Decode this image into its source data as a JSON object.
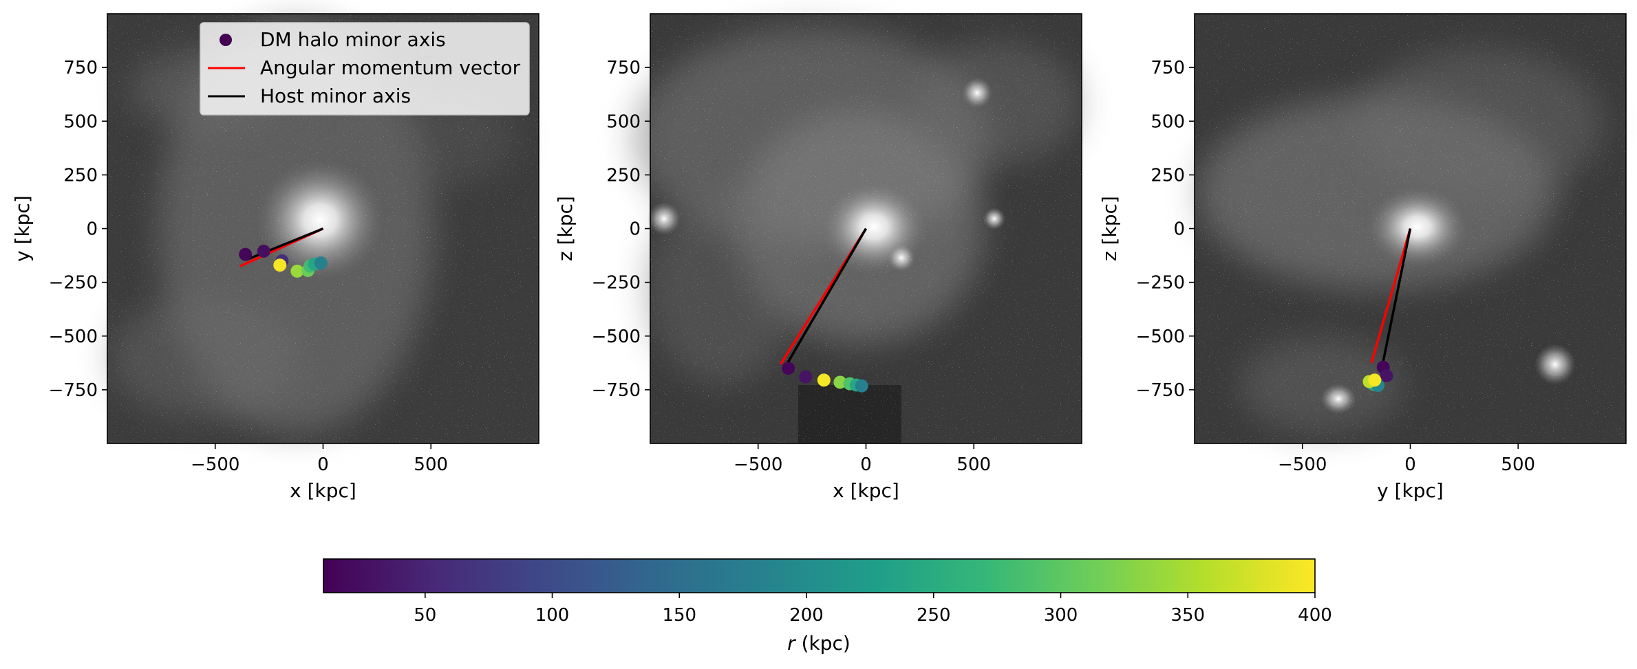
{
  "chart_data": [
    {
      "type": "scatter",
      "xlabel": "x [kpc]",
      "ylabel": "y [kpc]",
      "xlim": [
        -1000,
        1000
      ],
      "ylim": [
        -1000,
        1000
      ],
      "xticks": [
        -500,
        0,
        500
      ],
      "yticks": [
        -750,
        -500,
        -250,
        0,
        250,
        500,
        750
      ],
      "background": "grayscale density map",
      "legend": {
        "placement": "upper-center",
        "entries": [
          {
            "label": "DM halo minor axis",
            "marker": "dot",
            "color": "#440154"
          },
          {
            "label": "Angular momentum vector",
            "marker": "line",
            "color": "#ff0000"
          },
          {
            "label": "Host minor axis",
            "marker": "line",
            "color": "#000000"
          }
        ]
      },
      "angular_momentum_line": {
        "x": [
          0,
          -385
        ],
        "y": [
          0,
          -175
        ],
        "color": "#ff0000"
      },
      "host_minor_axis_line": {
        "x": [
          0,
          -355
        ],
        "y": [
          0,
          -145
        ],
        "color": "#000000"
      },
      "points": [
        {
          "x": -360,
          "y": -120,
          "r": 15
        },
        {
          "x": -275,
          "y": -105,
          "r": 25
        },
        {
          "x": -190,
          "y": -150,
          "r": 60
        },
        {
          "x": -200,
          "y": -170,
          "r": 395
        },
        {
          "x": -120,
          "y": -198,
          "r": 340
        },
        {
          "x": -70,
          "y": -195,
          "r": 310
        },
        {
          "x": -60,
          "y": -175,
          "r": 280
        },
        {
          "x": -40,
          "y": -165,
          "r": 240
        },
        {
          "x": -10,
          "y": -160,
          "r": 180
        }
      ]
    },
    {
      "type": "scatter",
      "xlabel": "x [kpc]",
      "ylabel": "z [kpc]",
      "xlim": [
        -1000,
        1000
      ],
      "ylim": [
        -1000,
        1000
      ],
      "xticks": [
        -500,
        0,
        500
      ],
      "yticks": [
        -750,
        -500,
        -250,
        0,
        250,
        500,
        750
      ],
      "background": "grayscale density map",
      "angular_momentum_line": {
        "x": [
          0,
          -395
        ],
        "y": [
          0,
          -630
        ],
        "color": "#ff0000"
      },
      "host_minor_axis_line": {
        "x": [
          0,
          -375
        ],
        "y": [
          0,
          -645
        ],
        "color": "#000000"
      },
      "points": [
        {
          "x": -360,
          "y": -650,
          "r": 15
        },
        {
          "x": -280,
          "y": -690,
          "r": 30
        },
        {
          "x": -195,
          "y": -705,
          "r": 395
        },
        {
          "x": -120,
          "y": -715,
          "r": 330
        },
        {
          "x": -75,
          "y": -722,
          "r": 290
        },
        {
          "x": -45,
          "y": -728,
          "r": 240
        },
        {
          "x": -20,
          "y": -732,
          "r": 180
        }
      ]
    },
    {
      "type": "scatter",
      "xlabel": "y [kpc]",
      "ylabel": "z [kpc]",
      "xlim": [
        -1000,
        1000
      ],
      "ylim": [
        -1000,
        1000
      ],
      "xticks": [
        -500,
        0,
        500
      ],
      "yticks": [
        -750,
        -500,
        -250,
        0,
        250,
        500,
        750
      ],
      "background": "grayscale density map",
      "angular_momentum_line": {
        "x": [
          0,
          -180
        ],
        "y": [
          0,
          -625
        ],
        "color": "#ff0000"
      },
      "host_minor_axis_line": {
        "x": [
          0,
          -135
        ],
        "y": [
          0,
          -665
        ],
        "color": "#000000"
      },
      "points": [
        {
          "x": -125,
          "y": -645,
          "r": 15
        },
        {
          "x": -110,
          "y": -685,
          "r": 30
        },
        {
          "x": -160,
          "y": -715,
          "r": 300
        },
        {
          "x": -170,
          "y": -725,
          "r": 250
        },
        {
          "x": -150,
          "y": -730,
          "r": 190
        },
        {
          "x": -190,
          "y": -712,
          "r": 360
        },
        {
          "x": -165,
          "y": -705,
          "r": 395
        }
      ]
    }
  ],
  "colorbar": {
    "label": "r (kpc)",
    "label_var": "r",
    "label_unit": " (kpc)",
    "range": [
      10,
      400
    ],
    "ticks": [
      50,
      100,
      150,
      200,
      250,
      300,
      350,
      400
    ],
    "colormap": "viridis",
    "colormap_stops": [
      "#440154",
      "#482878",
      "#3e4989",
      "#31688e",
      "#26828e",
      "#1f9e89",
      "#35b779",
      "#6ece58",
      "#b5de2b",
      "#fde725"
    ]
  }
}
